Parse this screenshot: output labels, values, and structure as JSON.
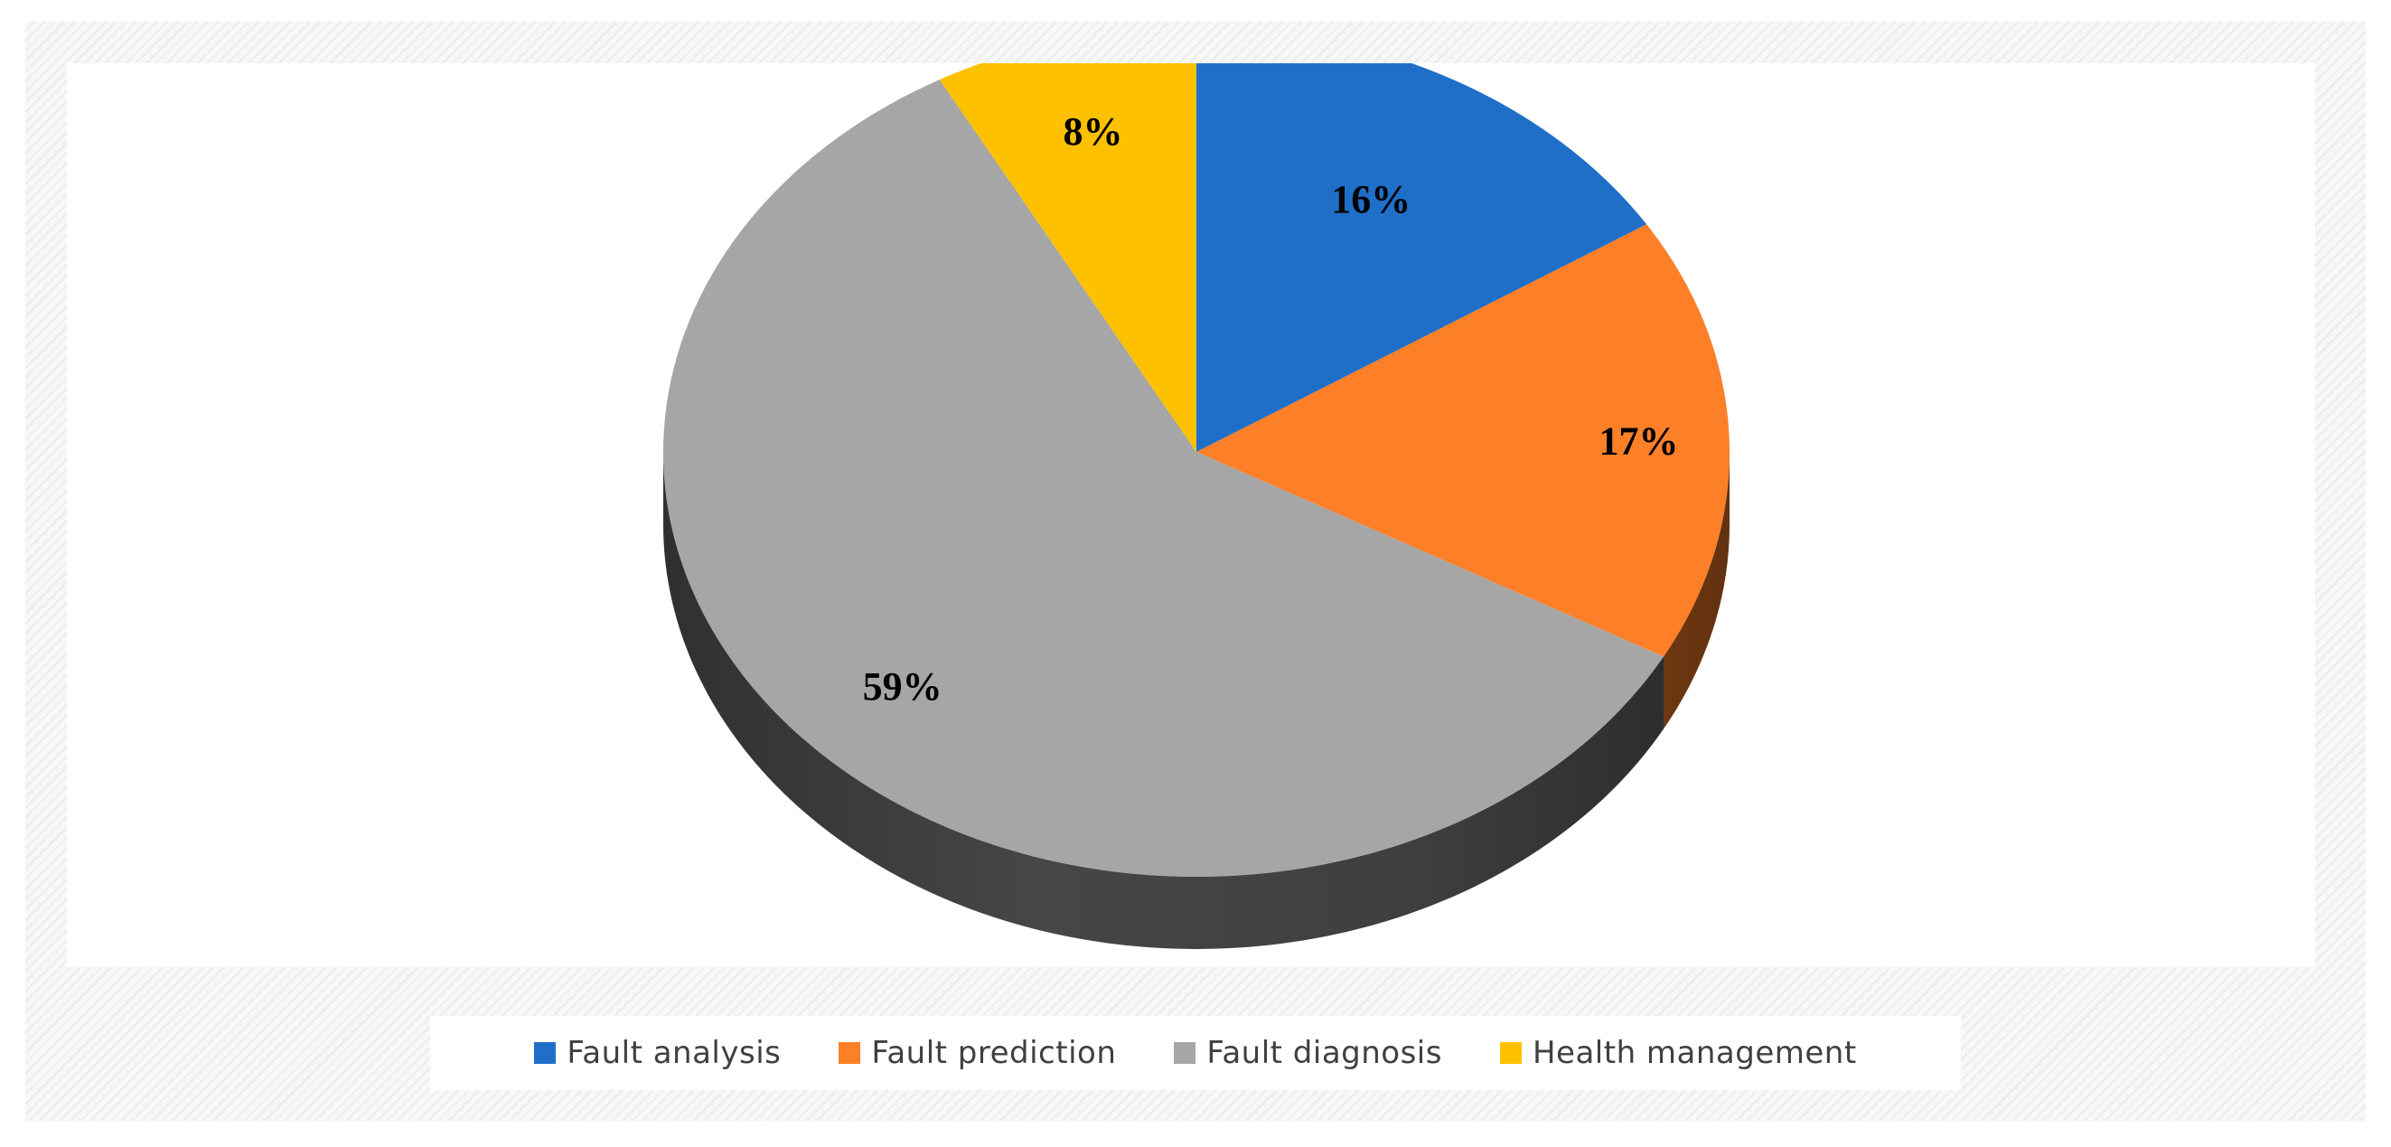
{
  "chart_data": {
    "type": "pie",
    "style": "3d",
    "slices": [
      {
        "name": "Fault analysis",
        "value": 16,
        "label": "16%",
        "color": "#1f6fc9",
        "side_color": "#15508f"
      },
      {
        "name": "Fault prediction",
        "value": 17,
        "label": "17%",
        "color": "#fd7f28",
        "side_color": "#b35a1c"
      },
      {
        "name": "Fault diagnosis",
        "value": 59,
        "label": "59%",
        "color": "#a6a6a6",
        "side_color": "#4a4a4a"
      },
      {
        "name": "Health management",
        "value": 8,
        "label": "8%",
        "color": "#fec100",
        "side_color": "#b38800"
      }
    ],
    "legend_position": "bottom"
  }
}
